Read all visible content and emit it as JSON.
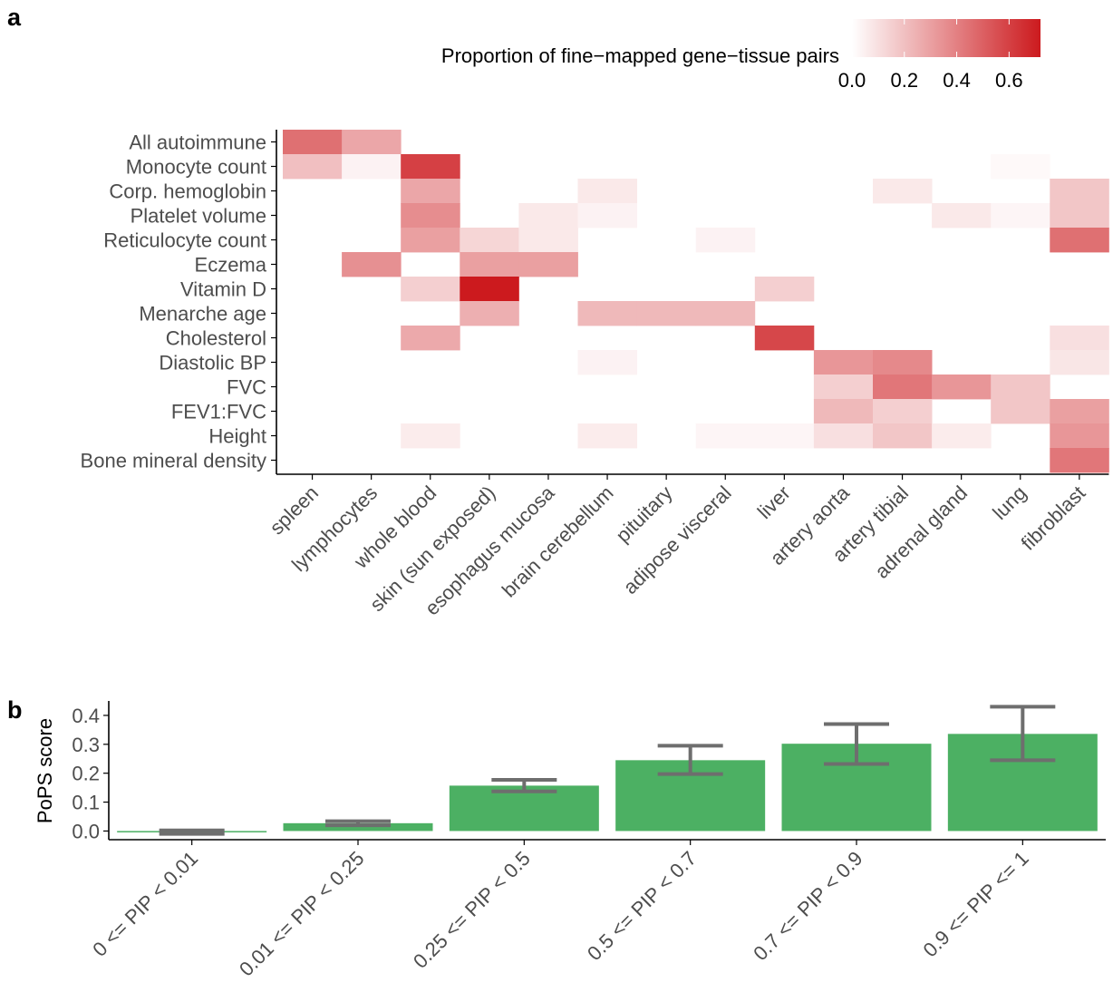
{
  "panels": {
    "a": "a",
    "b": "b"
  },
  "colors": {
    "low": "#ffffff",
    "high": "#cc1a1e",
    "bar": "#4cb063",
    "errorbar": "#6e6e6e",
    "axis": "#000000",
    "tick_text": "#4d4d4d"
  },
  "chart_data": [
    {
      "type": "heatmap",
      "legend_title": "Proportion of fine−mapped gene−tissue pairs",
      "legend_ticks": [
        "0.0",
        "0.2",
        "0.4",
        "0.6"
      ],
      "legend_values": [
        0.0,
        0.2,
        0.4,
        0.6
      ],
      "zlim": [
        0,
        0.72
      ],
      "legend_placement": "top",
      "x_categories": [
        "spleen",
        "lymphocytes",
        "whole blood",
        "skin (sun exposed)",
        "esophagus mucosa",
        "brain cerebellum",
        "pituitary",
        "adipose visceral",
        "liver",
        "artery aorta",
        "artery tibial",
        "adrenal gland",
        "lung",
        "fibroblast"
      ],
      "y_categories": [
        "All autoimmune",
        "Monocyte count",
        "Corp. hemoglobin",
        "Platelet volume",
        "Reticulocyte count",
        "Eczema",
        "Vitamin D",
        "Menarche age",
        "Cholesterol",
        "Diastolic BP",
        "FVC",
        "FEV1:FVC",
        "Height",
        "Bone mineral density"
      ],
      "values": [
        [
          0.45,
          0.28,
          0,
          0,
          0,
          0,
          0,
          0,
          0,
          0,
          0,
          0,
          0,
          0
        ],
        [
          0.2,
          0.04,
          0.6,
          0,
          0,
          0,
          0,
          0,
          0,
          0,
          0,
          0,
          0.02,
          0
        ],
        [
          0,
          0,
          0.28,
          0,
          0,
          0.07,
          0,
          0,
          0,
          0,
          0.07,
          0,
          0,
          0.18
        ],
        [
          0,
          0,
          0.36,
          0,
          0.07,
          0.04,
          0,
          0,
          0,
          0,
          0,
          0.07,
          0.03,
          0.18
        ],
        [
          0,
          0,
          0.3,
          0.13,
          0.07,
          0,
          0,
          0.04,
          0,
          0,
          0,
          0,
          0,
          0.45
        ],
        [
          0,
          0.35,
          0,
          0.3,
          0.3,
          0,
          0,
          0,
          0,
          0,
          0,
          0,
          0,
          0
        ],
        [
          0,
          0,
          0.15,
          0.72,
          0,
          0,
          0,
          0,
          0.15,
          0,
          0,
          0,
          0,
          0
        ],
        [
          0,
          0,
          0,
          0.25,
          0,
          0.22,
          0.22,
          0.22,
          0,
          0,
          0,
          0,
          0,
          0
        ],
        [
          0,
          0,
          0.27,
          0,
          0,
          0,
          0,
          0,
          0.58,
          0,
          0,
          0,
          0,
          0.1
        ],
        [
          0,
          0,
          0,
          0,
          0,
          0.04,
          0,
          0,
          0,
          0.33,
          0.37,
          0,
          0,
          0.08
        ],
        [
          0,
          0,
          0,
          0,
          0,
          0,
          0,
          0,
          0,
          0.15,
          0.43,
          0.33,
          0.18,
          0
        ],
        [
          0,
          0,
          0,
          0,
          0,
          0,
          0,
          0,
          0,
          0.22,
          0.15,
          0,
          0.18,
          0.3
        ],
        [
          0,
          0,
          0.06,
          0,
          0,
          0.06,
          0,
          0.03,
          0.03,
          0.1,
          0.18,
          0.06,
          0,
          0.33
        ],
        [
          0,
          0,
          0,
          0,
          0,
          0,
          0,
          0,
          0,
          0,
          0,
          0,
          0,
          0.43
        ]
      ]
    },
    {
      "type": "bar",
      "ylabel": "PoPS score",
      "categories": [
        "0 <= PIP < 0.01",
        "0.01 <= PIP < 0.25",
        "0.25 <= PIP < 0.5",
        "0.5 <= PIP < 0.7",
        "0.7 <= PIP < 0.9",
        "0.9 <= PIP <= 1"
      ],
      "values": [
        -0.003,
        0.027,
        0.157,
        0.245,
        0.302,
        0.336
      ],
      "error_low": [
        -0.01,
        0.02,
        0.137,
        0.197,
        0.232,
        0.245
      ],
      "error_high": [
        0.002,
        0.034,
        0.177,
        0.295,
        0.37,
        0.43
      ],
      "ylim": [
        -0.03,
        0.45
      ],
      "yticks": [
        0.0,
        0.1,
        0.2,
        0.3,
        0.4
      ],
      "ytick_labels": [
        "0.0",
        "0.1",
        "0.2",
        "0.3",
        "0.4"
      ],
      "grid": false
    }
  ]
}
